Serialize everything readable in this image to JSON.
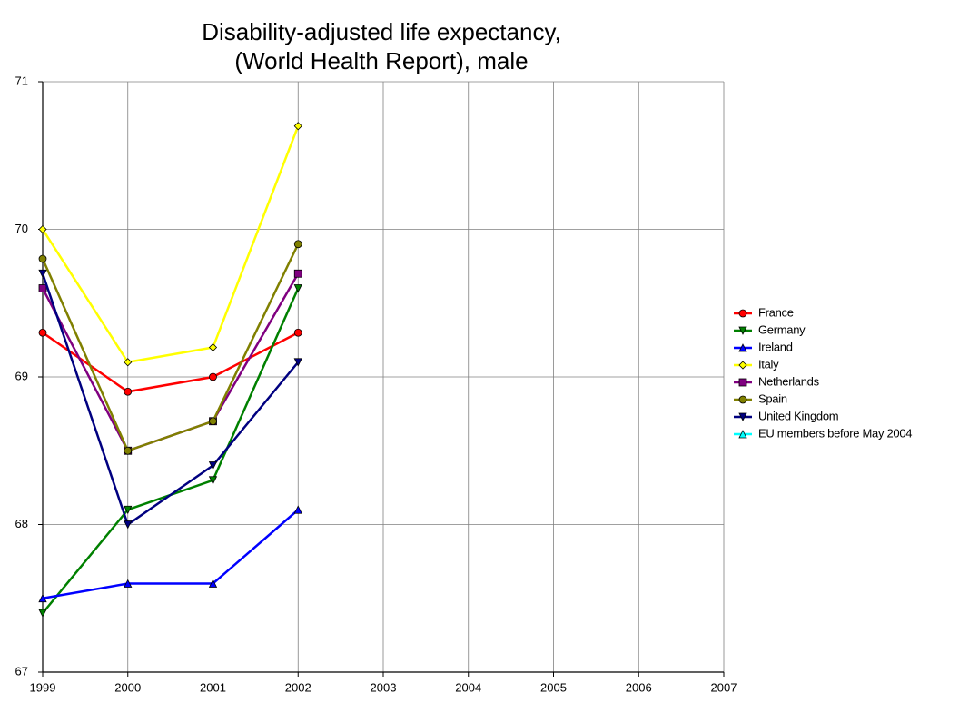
{
  "chart_data": {
    "type": "line",
    "title": [
      "Disability-adjusted life expectancy,",
      "(World Health Report), male"
    ],
    "x": [
      1999,
      2000,
      2001,
      2002
    ],
    "series": [
      {
        "name": "France",
        "color": "#ff0000",
        "marker": "circle",
        "values": [
          69.3,
          68.9,
          69.0,
          69.3
        ]
      },
      {
        "name": "Germany",
        "color": "#008000",
        "marker": "triangle-down",
        "values": [
          67.4,
          68.1,
          68.3,
          69.6
        ]
      },
      {
        "name": "Ireland",
        "color": "#0000ff",
        "marker": "triangle-up",
        "values": [
          67.5,
          67.6,
          67.6,
          68.1
        ]
      },
      {
        "name": "Italy",
        "color": "#ffff00",
        "marker": "diamond",
        "values": [
          70.0,
          69.1,
          69.2,
          70.7
        ]
      },
      {
        "name": "Netherlands",
        "color": "#800080",
        "marker": "square",
        "values": [
          69.6,
          68.5,
          68.7,
          69.7
        ]
      },
      {
        "name": "Spain",
        "color": "#808000",
        "marker": "circle",
        "values": [
          69.8,
          68.5,
          68.7,
          69.9
        ]
      },
      {
        "name": "United Kingdom",
        "color": "#000080",
        "marker": "triangle-down",
        "values": [
          69.7,
          68.0,
          68.4,
          69.1
        ]
      },
      {
        "name": "EU members before May 2004",
        "color": "#00ffff",
        "marker": "triangle-up",
        "values": [
          null,
          null,
          null,
          null
        ]
      }
    ],
    "xlim": [
      1999,
      2007
    ],
    "xticks": [
      1999,
      2000,
      2001,
      2002,
      2003,
      2004,
      2005,
      2006,
      2007
    ],
    "ylim": [
      67,
      71
    ],
    "yticks": [
      67,
      68,
      69,
      70,
      71
    ],
    "grid": true,
    "legend": "right"
  }
}
